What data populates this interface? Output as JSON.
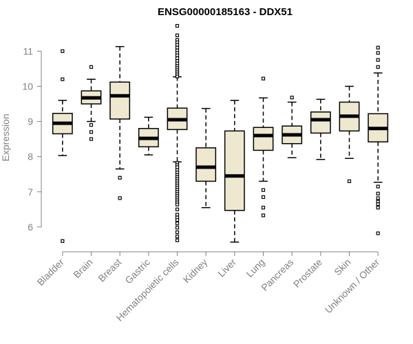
{
  "chart_data": {
    "type": "boxplot",
    "title": "ENSG00000185163 - DDX51",
    "xlabel": "",
    "ylabel": "Expression",
    "ylim": [
      5.45,
      11.75
    ],
    "yticks": [
      6,
      7,
      8,
      9,
      10,
      11
    ],
    "box_fill": "#EEE8D0",
    "stroke": "#000000",
    "axis_color": "#808080",
    "categories": [
      "Bladder",
      "Brain",
      "Breast",
      "Gastric",
      "Hematopoietic cells",
      "Kidney",
      "Liver",
      "Lung",
      "Pancreas",
      "Prostate",
      "Skin",
      "Unknown / Other"
    ],
    "boxes": [
      {
        "name": "Bladder",
        "whisker_low": 8.03,
        "q1": 8.65,
        "median": 8.95,
        "q3": 9.23,
        "whisker_high": 9.6,
        "outliers": [
          11.0,
          10.2,
          5.6
        ]
      },
      {
        "name": "Brain",
        "whisker_low": 9.0,
        "q1": 9.5,
        "median": 9.67,
        "q3": 9.87,
        "whisker_high": 10.2,
        "outliers": [
          10.55,
          8.9,
          8.7,
          8.5
        ]
      },
      {
        "name": "Breast",
        "whisker_low": 7.65,
        "q1": 9.07,
        "median": 9.73,
        "q3": 10.12,
        "whisker_high": 11.13,
        "outliers": [
          7.4,
          6.82
        ]
      },
      {
        "name": "Gastric",
        "whisker_low": 8.05,
        "q1": 8.28,
        "median": 8.52,
        "q3": 8.8,
        "whisker_high": 9.12,
        "outliers": []
      },
      {
        "name": "Hematopoietic cells",
        "whisker_low": 7.85,
        "q1": 8.77,
        "median": 9.05,
        "q3": 9.38,
        "whisker_high": 10.27,
        "outliers": [
          11.72,
          11.45,
          11.32,
          11.25,
          11.18,
          11.1,
          11.02,
          10.95,
          10.88,
          10.8,
          10.72,
          10.65,
          10.58,
          10.52,
          10.46,
          10.4,
          10.34,
          10.28,
          7.82,
          7.76,
          7.7,
          7.62,
          7.55,
          7.48,
          7.42,
          7.36,
          7.3,
          7.24,
          7.18,
          7.12,
          7.06,
          7.0,
          6.94,
          6.88,
          6.82,
          6.76,
          6.7,
          6.64,
          6.5,
          6.35,
          6.27,
          6.2,
          6.1,
          5.98,
          5.85,
          5.73,
          5.62
        ]
      },
      {
        "name": "Kidney",
        "whisker_low": 6.55,
        "q1": 7.3,
        "median": 7.7,
        "q3": 8.25,
        "whisker_high": 9.37,
        "outliers": []
      },
      {
        "name": "Liver",
        "whisker_low": 5.57,
        "q1": 6.47,
        "median": 7.45,
        "q3": 8.73,
        "whisker_high": 9.6,
        "outliers": []
      },
      {
        "name": "Lung",
        "whisker_low": 7.3,
        "q1": 8.18,
        "median": 8.6,
        "q3": 8.83,
        "whisker_high": 9.67,
        "outliers": [
          10.22,
          7.05,
          6.85,
          6.55,
          6.33
        ]
      },
      {
        "name": "Pancreas",
        "whisker_low": 7.97,
        "q1": 8.37,
        "median": 8.62,
        "q3": 8.87,
        "whisker_high": 9.55,
        "outliers": [
          9.68
        ]
      },
      {
        "name": "Prostate",
        "whisker_low": 7.92,
        "q1": 8.67,
        "median": 9.05,
        "q3": 9.27,
        "whisker_high": 9.63,
        "outliers": []
      },
      {
        "name": "Skin",
        "whisker_low": 7.95,
        "q1": 8.73,
        "median": 9.15,
        "q3": 9.55,
        "whisker_high": 10.0,
        "outliers": [
          7.3
        ]
      },
      {
        "name": "Unknown / Other",
        "whisker_low": 7.27,
        "q1": 8.42,
        "median": 8.8,
        "q3": 9.22,
        "whisker_high": 10.38,
        "outliers": [
          11.1,
          10.95,
          10.75,
          10.55,
          7.15,
          6.95,
          6.82,
          6.72,
          6.65,
          6.55,
          5.82
        ]
      }
    ]
  }
}
